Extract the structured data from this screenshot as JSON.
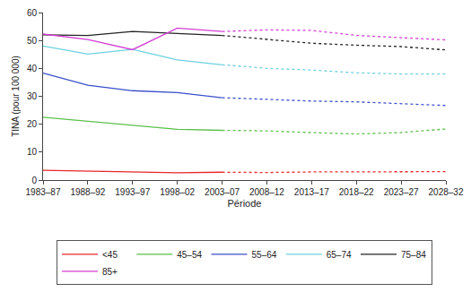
{
  "chart_data": {
    "type": "line",
    "x_label": "Période",
    "y_label": "TINA (pour 100 000)",
    "categories": [
      "1983–87",
      "1988–92",
      "1993–97",
      "1998–02",
      "2003–07",
      "2008–12",
      "2013–17",
      "2018–22",
      "2023–27",
      "2028–32"
    ],
    "ylim": [
      0,
      60
    ],
    "yticks": [
      0,
      10,
      20,
      30,
      40,
      50,
      60
    ],
    "grid": false,
    "legend": "bottom",
    "series": [
      {
        "name": "<45",
        "color": "#e8262a",
        "line_style": "solid",
        "values": [
          3.5,
          3.2,
          2.8,
          2.6,
          2.8,
          null,
          null,
          null,
          null,
          null
        ]
      },
      {
        "name": "<45",
        "color": "#e8262a",
        "line_style": "dotted",
        "values": [
          null,
          null,
          null,
          null,
          2.8,
          2.7,
          2.9,
          3.0,
          3.0,
          3.0
        ]
      },
      {
        "name": "45–54",
        "color": "#5cbf4a",
        "line_style": "solid",
        "values": [
          22.5,
          21.0,
          19.7,
          18.2,
          17.8,
          null,
          null,
          null,
          null,
          null
        ]
      },
      {
        "name": "45–54",
        "color": "#5cbf4a",
        "line_style": "dotted",
        "values": [
          null,
          null,
          null,
          null,
          17.8,
          17.6,
          17.0,
          16.5,
          17.0,
          18.3
        ]
      },
      {
        "name": "55–64",
        "color": "#3a4fc9",
        "line_style": "solid",
        "values": [
          38.3,
          34.0,
          32.0,
          31.3,
          29.5,
          null,
          null,
          null,
          null,
          null
        ]
      },
      {
        "name": "55–64",
        "color": "#3a4fc9",
        "line_style": "dotted",
        "values": [
          null,
          null,
          null,
          null,
          29.5,
          28.8,
          28.3,
          28.0,
          27.4,
          26.7
        ]
      },
      {
        "name": "65–74",
        "color": "#6dd0e0",
        "line_style": "solid",
        "values": [
          48.0,
          45.1,
          46.8,
          43.0,
          41.3,
          null,
          null,
          null,
          null,
          null
        ]
      },
      {
        "name": "65–74",
        "color": "#6dd0e0",
        "line_style": "dotted",
        "values": [
          null,
          null,
          null,
          null,
          41.3,
          40.0,
          39.4,
          38.4,
          38.0,
          38.0
        ]
      },
      {
        "name": "75–84",
        "color": "#222222",
        "line_style": "solid",
        "values": [
          52.0,
          51.8,
          53.2,
          52.6,
          51.8,
          null,
          null,
          null,
          null,
          null
        ]
      },
      {
        "name": "75–84",
        "color": "#222222",
        "line_style": "dotted",
        "values": [
          null,
          null,
          null,
          null,
          51.8,
          50.5,
          49.0,
          48.3,
          47.8,
          46.6
        ]
      },
      {
        "name": "85+",
        "color": "#d43fd4",
        "line_style": "solid",
        "values": [
          52.3,
          50.3,
          46.7,
          54.4,
          53.2,
          null,
          null,
          null,
          null,
          null
        ]
      },
      {
        "name": "85+",
        "color": "#d43fd4",
        "line_style": "dotted",
        "values": [
          null,
          null,
          null,
          null,
          53.2,
          53.8,
          53.6,
          51.8,
          51.0,
          50.2
        ]
      }
    ]
  }
}
